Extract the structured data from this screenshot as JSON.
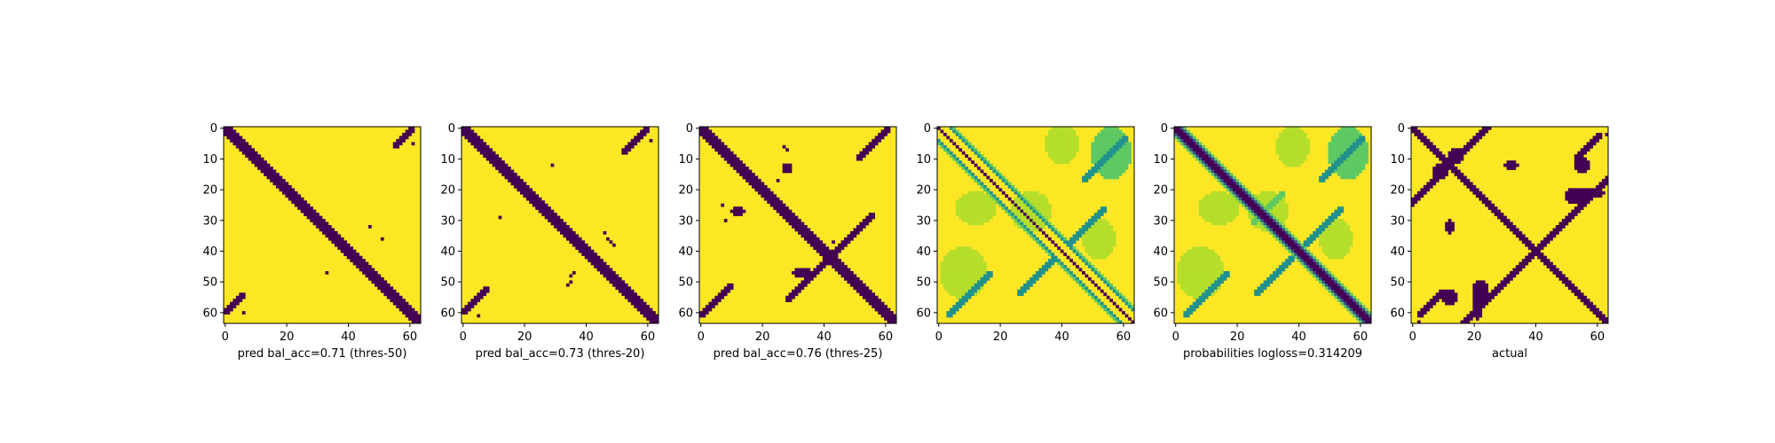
{
  "colors": {
    "background": "#fde725",
    "contact": "#440154",
    "mid_high": "#21918c",
    "mid_low": "#5ec962",
    "light": "#b5de2b"
  },
  "chart_data": [
    {
      "type": "heatmap",
      "xlabel": "pred bal_acc=0.71 (thres-50)",
      "xticks": [
        "0",
        "20",
        "40",
        "60"
      ],
      "yticks": [
        "0",
        "10",
        "20",
        "30",
        "40",
        "50",
        "60"
      ],
      "xlim": [
        0,
        63
      ],
      "ylim": [
        63,
        0
      ]
    },
    {
      "type": "heatmap",
      "xlabel": "pred bal_acc=0.73 (thres-20)",
      "xticks": [
        "0",
        "20",
        "40",
        "60"
      ],
      "yticks": [
        "0",
        "10",
        "20",
        "30",
        "40",
        "50",
        "60"
      ],
      "xlim": [
        0,
        63
      ],
      "ylim": [
        63,
        0
      ]
    },
    {
      "type": "heatmap",
      "xlabel": "pred bal_acc=0.76 (thres-25)",
      "xticks": [
        "0",
        "20",
        "40",
        "60"
      ],
      "yticks": [
        "0",
        "10",
        "20",
        "30",
        "40",
        "50",
        "60"
      ],
      "xlim": [
        0,
        63
      ],
      "ylim": [
        63,
        0
      ]
    },
    {
      "type": "heatmap",
      "xlabel": "",
      "xticks": [
        "0",
        "20",
        "40",
        "60"
      ],
      "yticks": [
        "0",
        "10",
        "20",
        "30",
        "40",
        "50",
        "60"
      ],
      "xlim": [
        0,
        63
      ],
      "ylim": [
        63,
        0
      ]
    },
    {
      "type": "heatmap",
      "xlabel": "probabilities logloss=0.314209",
      "xticks": [
        "0",
        "20",
        "40",
        "60"
      ],
      "yticks": [
        "0",
        "10",
        "20",
        "30",
        "40",
        "50",
        "60"
      ],
      "xlim": [
        0,
        63
      ],
      "ylim": [
        63,
        0
      ]
    },
    {
      "type": "heatmap",
      "xlabel": "actual",
      "xticks": [
        "0",
        "20",
        "40",
        "60"
      ],
      "yticks": [
        "0",
        "10",
        "20",
        "30",
        "40",
        "50",
        "60"
      ],
      "xlim": [
        0,
        63
      ],
      "ylim": [
        63,
        0
      ]
    }
  ]
}
